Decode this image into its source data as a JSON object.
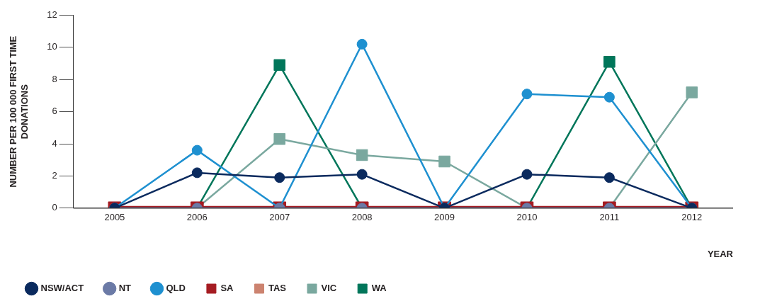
{
  "chart_data": {
    "type": "line",
    "categories": [
      "2005",
      "2006",
      "2007",
      "2008",
      "2009",
      "2010",
      "2011",
      "2012"
    ],
    "xlabel": "YEAR",
    "ylabel": "NUMBER PER 100 000 FIRST TIME DONATIONS",
    "ylim": [
      0,
      12
    ],
    "yticks": [
      0,
      2,
      4,
      6,
      8,
      10,
      12
    ],
    "grid": false,
    "legend": "bottom left",
    "line_style": "solid",
    "series": [
      {
        "name": "NSW/ACT",
        "color": "#0a2a5e",
        "marker": "circle",
        "values": [
          0,
          2.2,
          1.9,
          2.1,
          0,
          2.1,
          1.9,
          0
        ]
      },
      {
        "name": "NT",
        "color": "#6b7aa6",
        "marker": "circle",
        "values": [
          0,
          0,
          0,
          0,
          0,
          0,
          0,
          0
        ]
      },
      {
        "name": "QLD",
        "color": "#1e90d0",
        "marker": "circle",
        "values": [
          0,
          3.6,
          0,
          10.2,
          0,
          7.1,
          6.9,
          0
        ]
      },
      {
        "name": "SA",
        "color": "#a51c22",
        "marker": "square",
        "values": [
          0,
          0,
          0,
          0,
          0,
          0,
          0,
          0
        ]
      },
      {
        "name": "TAS",
        "color": "#cc8370",
        "marker": "square",
        "values": [
          null,
          null,
          null,
          null,
          null,
          null,
          null,
          null
        ]
      },
      {
        "name": "VIC",
        "color": "#7aa89f",
        "marker": "square",
        "values": [
          0,
          0,
          4.3,
          3.3,
          2.9,
          0,
          0,
          7.2
        ]
      },
      {
        "name": "WA",
        "color": "#00765a",
        "marker": "square",
        "values": [
          0,
          0,
          8.9,
          0,
          0,
          0,
          9.1,
          0
        ]
      }
    ]
  }
}
